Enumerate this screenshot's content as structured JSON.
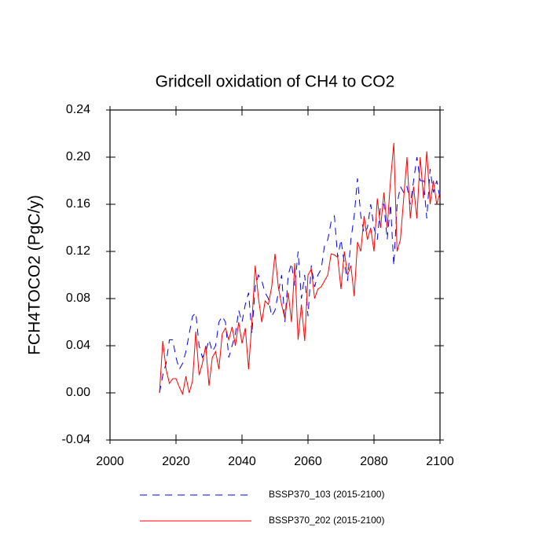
{
  "chart_data": {
    "type": "line",
    "title": "Gridcell oxidation of CH4 to CO2",
    "y_label": "FCH4TOCO2  (PgC/y)",
    "x": [
      2015,
      2016,
      2017,
      2018,
      2019,
      2020,
      2021,
      2022,
      2023,
      2024,
      2025,
      2026,
      2027,
      2028,
      2029,
      2030,
      2031,
      2032,
      2033,
      2034,
      2035,
      2036,
      2037,
      2038,
      2039,
      2040,
      2041,
      2042,
      2043,
      2044,
      2045,
      2046,
      2047,
      2048,
      2049,
      2050,
      2051,
      2052,
      2053,
      2054,
      2055,
      2056,
      2057,
      2058,
      2059,
      2060,
      2061,
      2062,
      2063,
      2064,
      2065,
      2066,
      2067,
      2068,
      2069,
      2070,
      2071,
      2072,
      2073,
      2074,
      2075,
      2076,
      2077,
      2078,
      2079,
      2080,
      2081,
      2082,
      2083,
      2084,
      2085,
      2086,
      2087,
      2088,
      2089,
      2090,
      2091,
      2092,
      2093,
      2094,
      2095,
      2096,
      2097,
      2098,
      2099,
      2100
    ],
    "series": [
      {
        "name": "BSSP370_103 (2015-2100)",
        "color": "#0000ff",
        "dash": "dashed",
        "values": [
          0.0,
          0.015,
          0.025,
          0.045,
          0.045,
          0.03,
          0.02,
          0.025,
          0.035,
          0.05,
          0.065,
          0.068,
          0.04,
          0.03,
          0.035,
          0.045,
          0.035,
          0.04,
          0.06,
          0.065,
          0.06,
          0.03,
          0.04,
          0.05,
          0.07,
          0.06,
          0.075,
          0.085,
          0.05,
          0.09,
          0.1,
          0.095,
          0.085,
          0.08,
          0.065,
          0.07,
          0.085,
          0.1,
          0.06,
          0.1,
          0.11,
          0.09,
          0.12,
          0.08,
          0.1,
          0.065,
          0.108,
          0.09,
          0.1,
          0.105,
          0.125,
          0.13,
          0.145,
          0.15,
          0.115,
          0.13,
          0.11,
          0.095,
          0.13,
          0.15,
          0.182,
          0.15,
          0.135,
          0.14,
          0.16,
          0.14,
          0.13,
          0.16,
          0.16,
          0.13,
          0.16,
          0.108,
          0.16,
          0.175,
          0.17,
          0.175,
          0.16,
          0.18,
          0.2,
          0.18,
          0.18,
          0.148,
          0.19,
          0.17,
          0.18,
          0.165
        ]
      },
      {
        "name": "BSSP370_202 (2015-2100)",
        "color": "#ff0000",
        "dash": "solid",
        "values": [
          0.0,
          0.044,
          0.02,
          0.008,
          0.012,
          0.012,
          0.005,
          -0.001,
          0.014,
          0.0,
          0.01,
          0.052,
          0.015,
          0.025,
          0.04,
          0.006,
          0.03,
          0.035,
          0.02,
          0.05,
          0.055,
          0.045,
          0.056,
          0.04,
          0.06,
          0.042,
          0.055,
          0.02,
          0.06,
          0.108,
          0.08,
          0.06,
          0.078,
          0.075,
          0.09,
          0.118,
          0.09,
          0.075,
          0.063,
          0.085,
          0.06,
          0.11,
          0.045,
          0.075,
          0.044,
          0.1,
          0.105,
          0.08,
          0.088,
          0.09,
          0.095,
          0.1,
          0.118,
          0.117,
          0.115,
          0.088,
          0.12,
          0.1,
          0.108,
          0.082,
          0.128,
          0.12,
          0.15,
          0.13,
          0.14,
          0.12,
          0.165,
          0.14,
          0.17,
          0.14,
          0.18,
          0.212,
          0.12,
          0.13,
          0.165,
          0.2,
          0.148,
          0.175,
          0.148,
          0.2,
          0.165,
          0.205,
          0.16,
          0.18,
          0.16,
          0.17
        ]
      }
    ],
    "xlim": [
      2000,
      2100
    ],
    "xticks": [
      2000,
      2020,
      2040,
      2060,
      2080,
      2100
    ],
    "ylim": [
      -0.04,
      0.24
    ],
    "yticks": [
      -0.04,
      {
        "value": 0.0,
        "label": "0.00"
      },
      0.04,
      0.08,
      0.12,
      0.16,
      {
        "value": 0.2,
        "label": "0.20"
      },
      0.24
    ],
    "grid": false,
    "legend": "bottom"
  }
}
